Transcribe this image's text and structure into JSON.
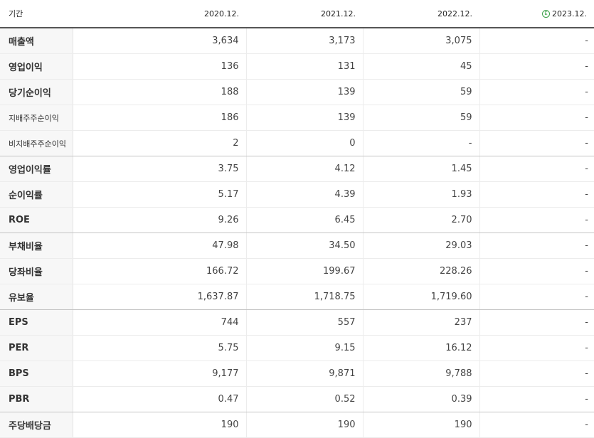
{
  "header": {
    "label": "기간",
    "periods": [
      "2020.12.",
      "2021.12.",
      "2022.12.",
      "2023.12."
    ],
    "estimate_icon": "e-estimate-icon",
    "estimate_glyph": "E",
    "estimate_color": "#3aa047"
  },
  "rows": [
    {
      "label": "매출액",
      "values": [
        "3,634",
        "3,173",
        "3,075",
        "-"
      ]
    },
    {
      "label": "영업이익",
      "values": [
        "136",
        "131",
        "45",
        "-"
      ]
    },
    {
      "label": "당기순이익",
      "values": [
        "188",
        "139",
        "59",
        "-"
      ]
    },
    {
      "label": "지배주주순이익",
      "values": [
        "186",
        "139",
        "59",
        "-"
      ]
    },
    {
      "label": "비지배주주순이익",
      "values": [
        "2",
        "0",
        "-",
        "-"
      ]
    },
    {
      "label": "영업이익률",
      "values": [
        "3.75",
        "4.12",
        "1.45",
        "-"
      ]
    },
    {
      "label": "순이익률",
      "values": [
        "5.17",
        "4.39",
        "1.93",
        "-"
      ]
    },
    {
      "label": "ROE",
      "values": [
        "9.26",
        "6.45",
        "2.70",
        "-"
      ]
    },
    {
      "label": "부채비율",
      "values": [
        "47.98",
        "34.50",
        "29.03",
        "-"
      ]
    },
    {
      "label": "당좌비율",
      "values": [
        "166.72",
        "199.67",
        "228.26",
        "-"
      ]
    },
    {
      "label": "유보율",
      "values": [
        "1,637.87",
        "1,718.75",
        "1,719.60",
        "-"
      ]
    },
    {
      "label": "EPS",
      "values": [
        "744",
        "557",
        "237",
        "-"
      ]
    },
    {
      "label": "PER",
      "values": [
        "5.75",
        "9.15",
        "16.12",
        "-"
      ]
    },
    {
      "label": "BPS",
      "values": [
        "9,177",
        "9,871",
        "9,788",
        "-"
      ]
    },
    {
      "label": "PBR",
      "values": [
        "0.47",
        "0.52",
        "0.39",
        "-"
      ]
    },
    {
      "label": "주당배당금",
      "values": [
        "190",
        "190",
        "190",
        "-"
      ]
    }
  ]
}
